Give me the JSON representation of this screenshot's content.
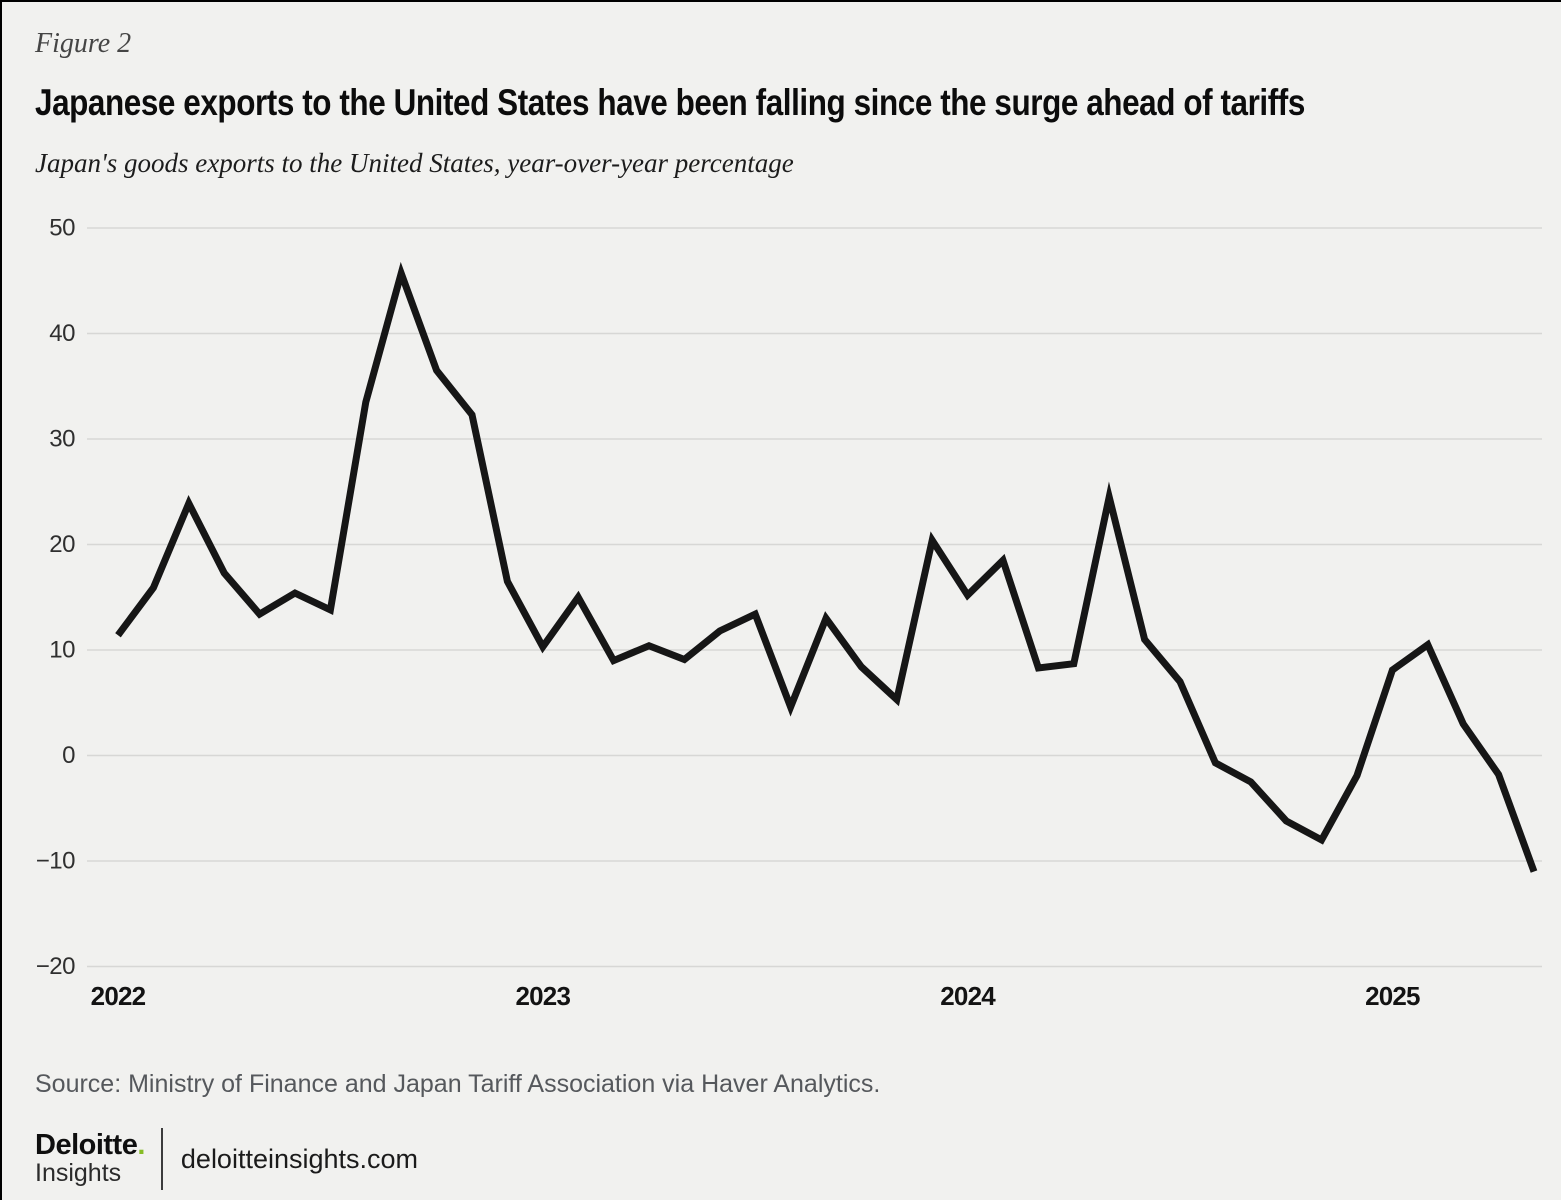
{
  "page": {
    "figure_label": "Figure 2",
    "title": "Japanese exports to the United States have been falling since the surge ahead of tariffs",
    "subtitle": "Japan's goods exports to the United States, year-over-year percentage",
    "source": "Source: Ministry of Finance and Japan Tariff Association via Haver Analytics.",
    "background": "#f1f1ef"
  },
  "footer": {
    "logo_primary": "Deloitte",
    "logo_dot": ".",
    "logo_dot_color": "#86bc25",
    "logo_secondary": "Insights",
    "site": "deloitteinsights.com"
  },
  "chart_data": {
    "type": "line",
    "title": "Japanese exports to the United States have been falling since the surge ahead of tariffs",
    "subtitle": "Japan's goods exports to the United States, year-over-year percentage",
    "xlabel": "",
    "ylabel": "year-over-year percentage",
    "ylim": [
      -20,
      50
    ],
    "yticks": [
      50,
      40,
      30,
      20,
      10,
      0,
      -10,
      -20
    ],
    "xtick_labels": [
      "2022",
      "2023",
      "2024",
      "2025"
    ],
    "grid": "horizontal",
    "legend": "none",
    "line_color": "#161616",
    "grid_color": "#d7d7d5",
    "x": [
      "2022-01",
      "2022-02",
      "2022-03",
      "2022-04",
      "2022-05",
      "2022-06",
      "2022-07",
      "2022-08",
      "2022-09",
      "2022-10",
      "2022-11",
      "2022-12",
      "2023-01",
      "2023-02",
      "2023-03",
      "2023-04",
      "2023-05",
      "2023-06",
      "2023-07",
      "2023-08",
      "2023-09",
      "2023-10",
      "2023-11",
      "2023-12",
      "2024-01",
      "2024-02",
      "2024-03",
      "2024-04",
      "2024-05",
      "2024-06",
      "2024-07",
      "2024-08",
      "2024-09",
      "2024-10",
      "2024-11",
      "2024-12",
      "2025-01",
      "2025-02",
      "2025-03",
      "2025-04",
      "2025-05"
    ],
    "series": [
      {
        "name": "Japan goods exports to the United States, YoY %",
        "values": [
          11.4,
          15.9,
          23.9,
          17.3,
          13.4,
          15.4,
          13.8,
          33.5,
          45.7,
          36.5,
          32.3,
          16.5,
          10.3,
          15.0,
          9.0,
          10.4,
          9.1,
          11.8,
          13.4,
          4.6,
          13.0,
          8.4,
          5.3,
          20.4,
          15.2,
          18.5,
          8.3,
          8.7,
          24.5,
          11.0,
          7.0,
          -0.7,
          -2.5,
          -6.2,
          -8.0,
          -1.9,
          8.1,
          10.5,
          3.0,
          -1.8,
          -11.0
        ]
      }
    ]
  }
}
